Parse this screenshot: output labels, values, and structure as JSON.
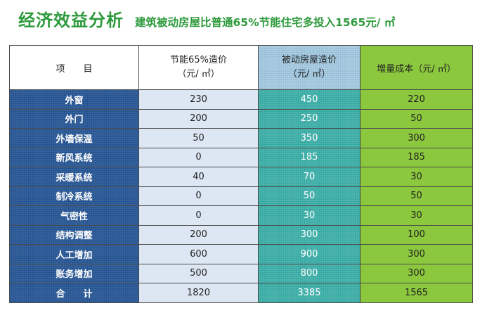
{
  "title": "经济效益分析",
  "subtitle": "建筑被动房屋比普通65%节能住宅多投入1565元/ ㎡",
  "table": {
    "headers": {
      "item": "项　　目",
      "basic_line1": "节能65%造价",
      "basic_line2": "（元/ ㎡）",
      "passive_line1": "被动房屋造价",
      "passive_line2": "（元/ ㎡）",
      "incr": "增量成本（元/ ㎡）"
    },
    "rows": [
      {
        "item": "外窗",
        "basic": "230",
        "passive": "450",
        "incr": "220"
      },
      {
        "item": "外门",
        "basic": "200",
        "passive": "250",
        "incr": "50"
      },
      {
        "item": "外墙保温",
        "basic": "50",
        "passive": "350",
        "incr": "300"
      },
      {
        "item": "新风系统",
        "basic": "0",
        "passive": "185",
        "incr": "185"
      },
      {
        "item": "采暖系统",
        "basic": "40",
        "passive": "70",
        "incr": "30"
      },
      {
        "item": "制冷系统",
        "basic": "0",
        "passive": "50",
        "incr": "50"
      },
      {
        "item": "气密性",
        "basic": "0",
        "passive": "30",
        "incr": "30"
      },
      {
        "item": "结构调整",
        "basic": "200",
        "passive": "300",
        "incr": "100"
      },
      {
        "item": "人工增加",
        "basic": "600",
        "passive": "900",
        "incr": "300"
      },
      {
        "item": "账务增加",
        "basic": "500",
        "passive": "800",
        "incr": "300"
      },
      {
        "item": "合　　计",
        "basic": "1820",
        "passive": "3385",
        "incr": "1565"
      }
    ]
  }
}
